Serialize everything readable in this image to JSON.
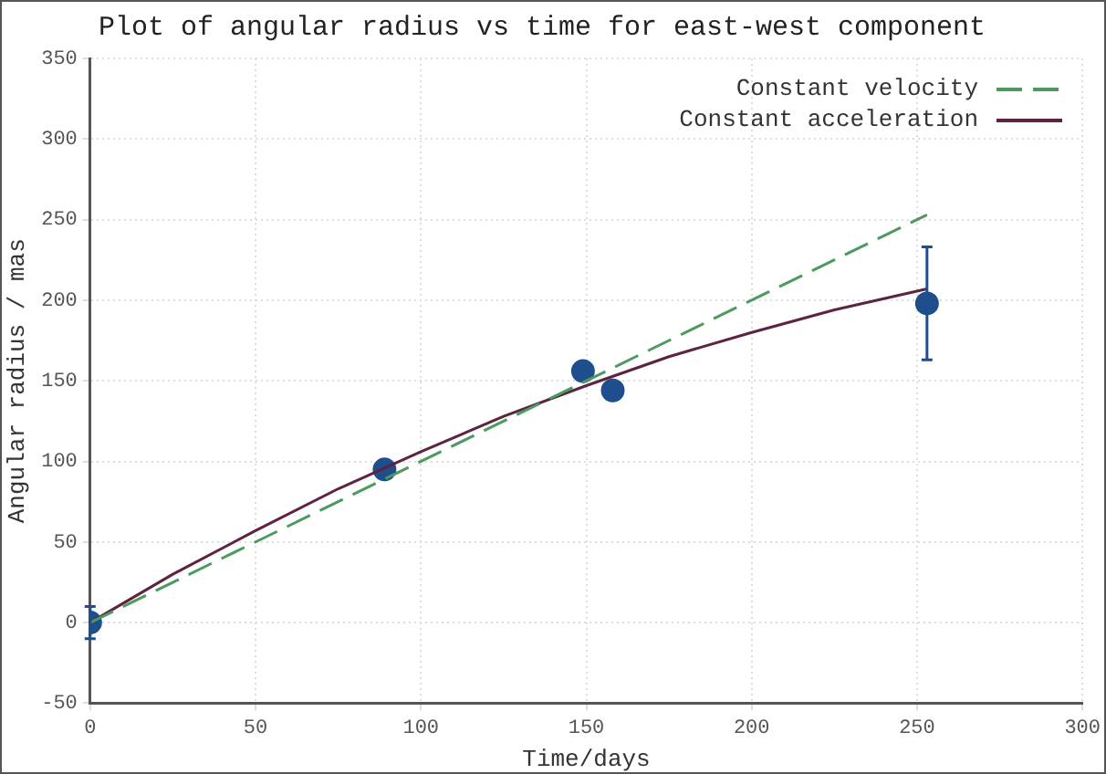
{
  "chart_data": {
    "type": "scatter",
    "title": "Plot of angular radius vs time for east-west component",
    "xlabel": "Time/days",
    "ylabel": "Angular radius / mas",
    "xlim": [
      0,
      300
    ],
    "xticks": [
      0,
      50,
      100,
      150,
      200,
      250,
      300
    ],
    "ylim": [
      -50,
      350
    ],
    "yticks": [
      -50,
      0,
      50,
      100,
      150,
      200,
      250,
      300,
      350
    ],
    "grid": true,
    "legend": "top right",
    "marker": "circle",
    "series": [
      {
        "type": "line",
        "name": "Constant velocity",
        "color": "#4c9a5f",
        "line_style": "dashed",
        "marker": "none",
        "x": [
          0,
          253
        ],
        "values": [
          0,
          253
        ]
      },
      {
        "type": "line",
        "name": "Constant acceleration",
        "color": "#5e2340",
        "line_style": "solid",
        "marker": "none",
        "x": [
          0,
          25,
          50,
          75,
          100,
          125,
          150,
          175,
          200,
          225,
          253
        ],
        "values": [
          0,
          30,
          57,
          83,
          106,
          128,
          147,
          165,
          180,
          194,
          207
        ]
      },
      {
        "color": "#1f4e8c",
        "x": [
          0,
          89,
          149,
          158,
          253
        ],
        "values": [
          0,
          95,
          156,
          144,
          198
        ],
        "errors": [
          10,
          null,
          null,
          null,
          [
            163,
            233
          ]
        ]
      }
    ]
  }
}
